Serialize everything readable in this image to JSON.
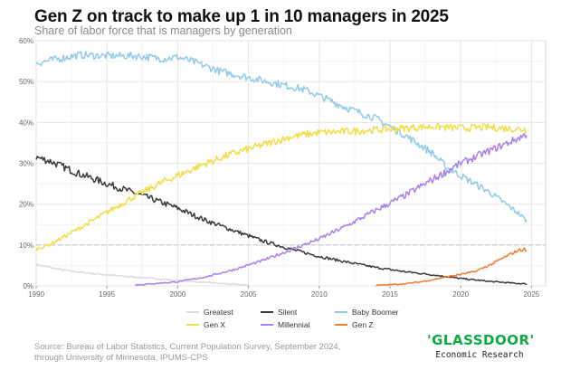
{
  "chart_data": {
    "type": "line",
    "title": "Gen Z on track to make up 1 in 10 managers in 2025",
    "subtitle": "Share of labor force that is managers by generation",
    "xlabel": "",
    "ylabel": "",
    "xlim": [
      1990,
      2026
    ],
    "ylim": [
      0,
      60
    ],
    "x_ticks": [
      "1990",
      "1995",
      "2000",
      "2005",
      "2010",
      "2015",
      "2020",
      "2025"
    ],
    "y_ticks": [
      "0%",
      "10%",
      "20%",
      "30%",
      "40%",
      "50%",
      "60%"
    ],
    "reference_line": {
      "y": 10,
      "style": "dashed"
    },
    "grid": true,
    "legend": "bottom",
    "series": [
      {
        "name": "Greatest",
        "color": "#dcdcdc",
        "x": [
          1990,
          1992,
          1994,
          1996,
          1998,
          2000,
          2002,
          2004,
          2005
        ],
        "values": [
          5.2,
          3.8,
          3.0,
          2.4,
          1.9,
          1.3,
          0.8,
          0.4,
          0.2
        ]
      },
      {
        "name": "Silent",
        "color": "#3a3a3a",
        "x": [
          1990,
          1991,
          1993,
          1995,
          1998,
          2000,
          2002,
          2004,
          2006,
          2008,
          2010,
          2012,
          2014,
          2016,
          2018,
          2020,
          2022,
          2024,
          2024.7
        ],
        "values": [
          31.5,
          30.5,
          27.5,
          25.0,
          21.5,
          19.0,
          16.0,
          13.5,
          11.0,
          9.0,
          7.2,
          5.8,
          4.5,
          3.5,
          2.7,
          1.8,
          1.1,
          0.6,
          0.5
        ]
      },
      {
        "name": "Baby Boomer",
        "color": "#92cbe9",
        "x": [
          1990,
          1991,
          1993,
          1995,
          1997,
          1999,
          2000,
          2001,
          2003,
          2005,
          2007,
          2009,
          2010,
          2012,
          2014,
          2016,
          2018,
          2019,
          2020,
          2022,
          2024,
          2024.7
        ],
        "values": [
          54.5,
          55.2,
          56.5,
          56.3,
          56.3,
          55.6,
          56.0,
          55.0,
          52.5,
          51.0,
          49.5,
          48.0,
          46.5,
          43.5,
          41.0,
          37.0,
          32.5,
          29.0,
          27.0,
          23.0,
          18.0,
          15.8
        ]
      },
      {
        "name": "Gen X",
        "color": "#f2dd4a",
        "x": [
          1990,
          1991,
          1993,
          1995,
          1997,
          1999,
          2000,
          2002,
          2004,
          2006,
          2008,
          2010,
          2012,
          2014,
          2016,
          2018,
          2020,
          2022,
          2024,
          2024.7
        ],
        "values": [
          9.0,
          10.2,
          14.0,
          18.0,
          22.0,
          25.5,
          27.0,
          30.0,
          32.5,
          34.5,
          36.5,
          37.5,
          37.8,
          38.2,
          38.6,
          39.0,
          38.6,
          38.8,
          38.4,
          38.2
        ]
      },
      {
        "name": "Millennial",
        "color": "#a981eb",
        "x": [
          1997,
          2000,
          2002,
          2004,
          2006,
          2008,
          2010,
          2012,
          2014,
          2016,
          2018,
          2020,
          2022,
          2024,
          2024.7
        ],
        "values": [
          0.2,
          1.0,
          2.2,
          4.0,
          6.2,
          8.8,
          11.5,
          14.8,
          18.5,
          22.0,
          26.0,
          30.0,
          33.0,
          36.0,
          37.2
        ]
      },
      {
        "name": "Gen Z",
        "color": "#f27d32",
        "x": [
          2014,
          2015,
          2016,
          2017,
          2018,
          2019,
          2020,
          2021,
          2022,
          2023,
          2024,
          2024.5,
          2024.7
        ],
        "values": [
          0.1,
          0.3,
          0.5,
          0.9,
          1.5,
          2.2,
          2.8,
          3.5,
          5.0,
          6.8,
          8.6,
          9.0,
          8.3
        ]
      }
    ]
  },
  "footer": {
    "source_line1": "Source: Bureau of Labor Statistics, Current Population Survey, September 2024,",
    "source_line2": "through University of Minnesota, IPUMS-CPS",
    "logo": "'GLASSDOOR'",
    "logo_sub": "Economic Research"
  }
}
